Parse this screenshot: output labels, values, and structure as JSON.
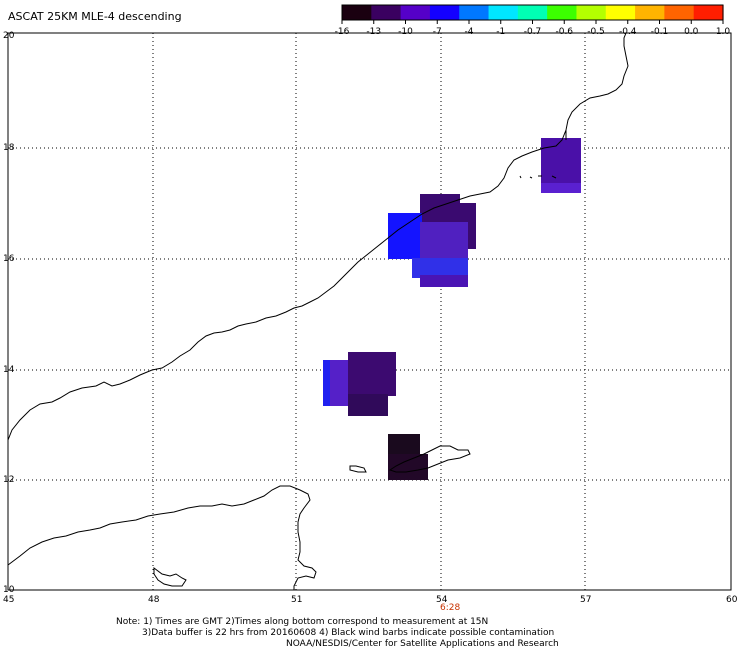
{
  "title": "ASCAT 25KM MLE-4 descending",
  "colorbar": {
    "labels": [
      "-16",
      "-13",
      "-10",
      "-7",
      "-4",
      "-1",
      "-0.7",
      "-0.6",
      "-0.5",
      "-0.4",
      "-0.1",
      "0.0",
      "1.0"
    ],
    "colors": [
      "#1a0010",
      "#3a0060",
      "#5500c8",
      "#1400ff",
      "#0078ff",
      "#00e6ff",
      "#00ffb4",
      "#3cff00",
      "#b4ff00",
      "#ffff00",
      "#ffb400",
      "#ff6400",
      "#ff1e00"
    ]
  },
  "axes": {
    "x_ticks": [
      "45",
      "48",
      "51",
      "54",
      "57",
      "60"
    ],
    "y_ticks": [
      "20",
      "18",
      "16",
      "14",
      "12",
      "10"
    ],
    "pass_time": "6:28"
  },
  "notes": [
    "Note: 1) Times are GMT 2)Times along bottom correspond to measurement at 15N",
    "3)Data buffer is 22 hrs from 20160608 4) Black wind barbs indicate possible contamination",
    "NOAA/NESDIS/Center for Satellite Applications and Research"
  ],
  "colors": {
    "coast": "#000000",
    "grid": "#000000",
    "time_label": "#c83200"
  }
}
